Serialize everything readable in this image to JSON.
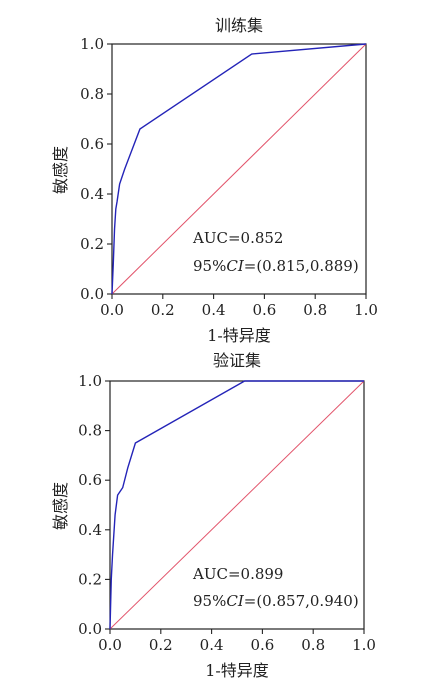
{
  "chart_data": [
    {
      "type": "line",
      "title": "训练集",
      "xlabel": "1-特异度",
      "ylabel": "敏感度",
      "xlim": [
        0,
        1.0
      ],
      "ylim": [
        0,
        1.0
      ],
      "x_ticks": [
        "0.0",
        "0.2",
        "0.4",
        "0.6",
        "0.8",
        "1.0"
      ],
      "y_ticks": [
        "0.0",
        "0.2",
        "0.4",
        "0.6",
        "0.8",
        "1.0"
      ],
      "annotations": {
        "auc": "AUC=0.852",
        "ci_prefix": "95%",
        "ci_italic": "CI",
        "ci_value": "=(0.815,0.889)"
      },
      "reference_line": {
        "x": [
          0,
          1.0
        ],
        "y": [
          0,
          1.0
        ],
        "color": "#e2546b"
      },
      "series": [
        {
          "color": "#2424b8",
          "x": [
            0,
            0.005,
            0.01,
            0.015,
            0.02,
            0.03,
            0.05,
            0.11,
            0.55,
            1.0
          ],
          "y": [
            0,
            0.12,
            0.26,
            0.34,
            0.37,
            0.44,
            0.5,
            0.66,
            0.96,
            1.0
          ]
        }
      ]
    },
    {
      "type": "line",
      "title": "验证集",
      "xlabel": "1-特异度",
      "ylabel": "敏感度",
      "xlim": [
        0,
        1.0
      ],
      "ylim": [
        0,
        1.0
      ],
      "x_ticks": [
        "0.0",
        "0.2",
        "0.4",
        "0.6",
        "0.8",
        "1.0"
      ],
      "y_ticks": [
        "0.0",
        "0.2",
        "0.4",
        "0.6",
        "0.8",
        "1.0"
      ],
      "annotations": {
        "auc": "AUC=0.899",
        "ci_prefix": "95%",
        "ci_italic": "CI",
        "ci_value": "=(0.857,0.940)"
      },
      "reference_line": {
        "x": [
          0,
          1.0
        ],
        "y": [
          0,
          1.0
        ],
        "color": "#e2546b"
      },
      "series": [
        {
          "color": "#2424b8",
          "x": [
            0,
            0.005,
            0.01,
            0.02,
            0.03,
            0.05,
            0.07,
            0.1,
            0.53,
            1.0
          ],
          "y": [
            0,
            0.2,
            0.3,
            0.46,
            0.54,
            0.57,
            0.65,
            0.75,
            1.0,
            1.0
          ]
        }
      ]
    }
  ]
}
